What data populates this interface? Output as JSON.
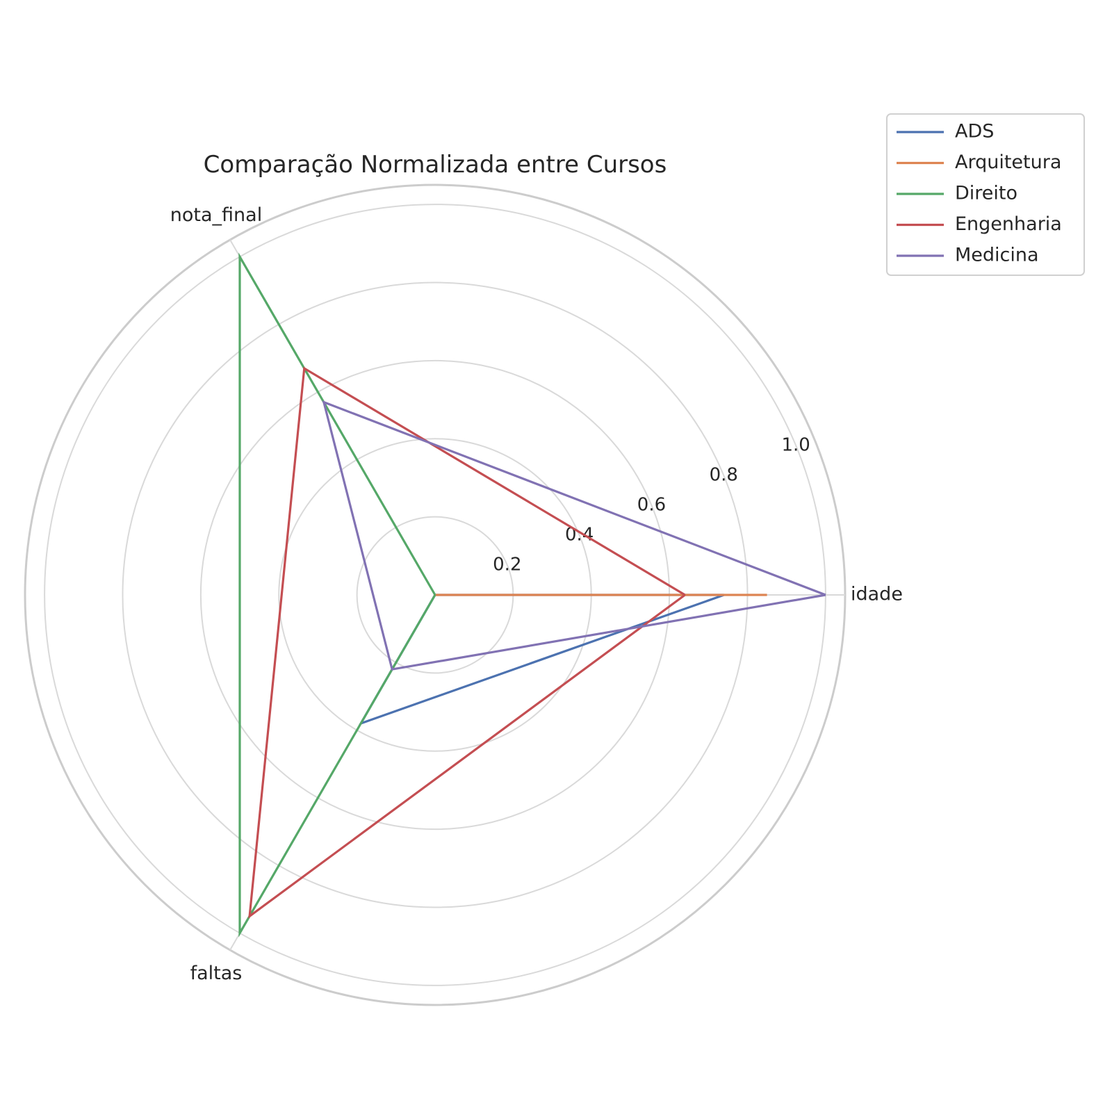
{
  "chart_data": {
    "type": "radar",
    "title": "Comparação Normalizada entre Cursos",
    "axes": [
      "idade",
      "nota_final",
      "faltas"
    ],
    "rlim": [
      0,
      1.05
    ],
    "rticks": [
      0.2,
      0.4,
      0.6,
      0.8,
      1.0
    ],
    "rtick_labels": [
      "0.2",
      "0.4",
      "0.6",
      "0.8",
      "1.0"
    ],
    "grid": true,
    "legend_position": "top-right",
    "series": [
      {
        "name": "ADS",
        "color": "#4c72b0",
        "values": [
          0.74,
          0.0,
          0.38
        ]
      },
      {
        "name": "Arquitetura",
        "color": "#dd8452",
        "values": [
          0.85,
          0.0,
          0.0
        ]
      },
      {
        "name": "Direito",
        "color": "#55a868",
        "values": [
          0.0,
          1.0,
          1.0
        ]
      },
      {
        "name": "Engenharia",
        "color": "#c44e52",
        "values": [
          0.64,
          0.67,
          0.95
        ]
      },
      {
        "name": "Medicina",
        "color": "#8172b3",
        "values": [
          1.0,
          0.57,
          0.22
        ]
      }
    ]
  }
}
